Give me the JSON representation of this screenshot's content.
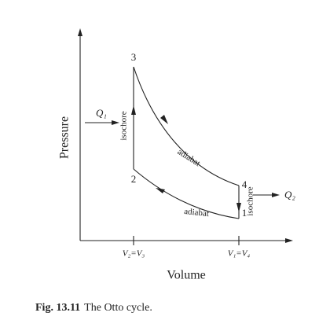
{
  "axes": {
    "y_label": "Pressure",
    "x_label": "Volume",
    "x_ticks": [
      "V₂=V₃",
      "V₁=V₄"
    ]
  },
  "points": [
    "1",
    "2",
    "3",
    "4"
  ],
  "processes": {
    "left": "isochore",
    "top": "adiabat",
    "bottom": "adiabat",
    "right": "isochore"
  },
  "heat": {
    "in": "Q₁",
    "out": "Q₂"
  },
  "caption": {
    "label": "Fig. 13.11",
    "text": "The Otto cycle."
  }
}
